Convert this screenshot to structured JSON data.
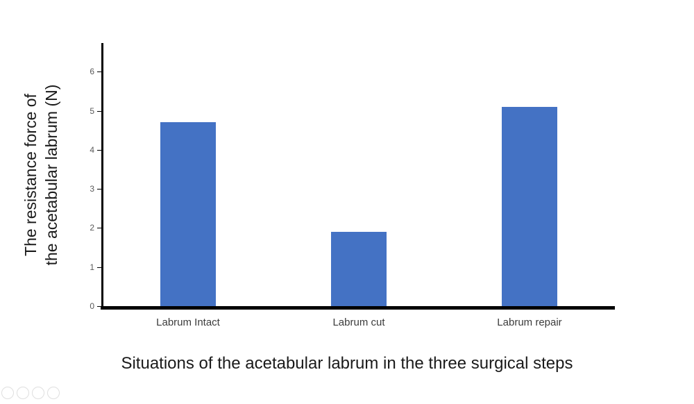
{
  "chart_data": {
    "type": "bar",
    "title": "",
    "categories": [
      "Labrum Intact",
      "Labrum cut",
      "Labrum repair"
    ],
    "values": [
      4.7,
      1.9,
      5.1
    ],
    "xlabel": "Situations of  the acetabular labrum in the three surgical steps",
    "ylabel": "The resistance force of the acetabular labrum (N)",
    "ylabel_lines": [
      "The resistance force of",
      "the acetabular labrum (N)"
    ],
    "yticks": [
      0,
      1,
      2,
      3,
      4,
      5,
      6
    ],
    "ylim": [
      0,
      6.75
    ],
    "bar_color": "#4472C4",
    "axis_color": "#000000",
    "tick_label_color": "#595959",
    "grid": false,
    "legend_position": "none"
  }
}
